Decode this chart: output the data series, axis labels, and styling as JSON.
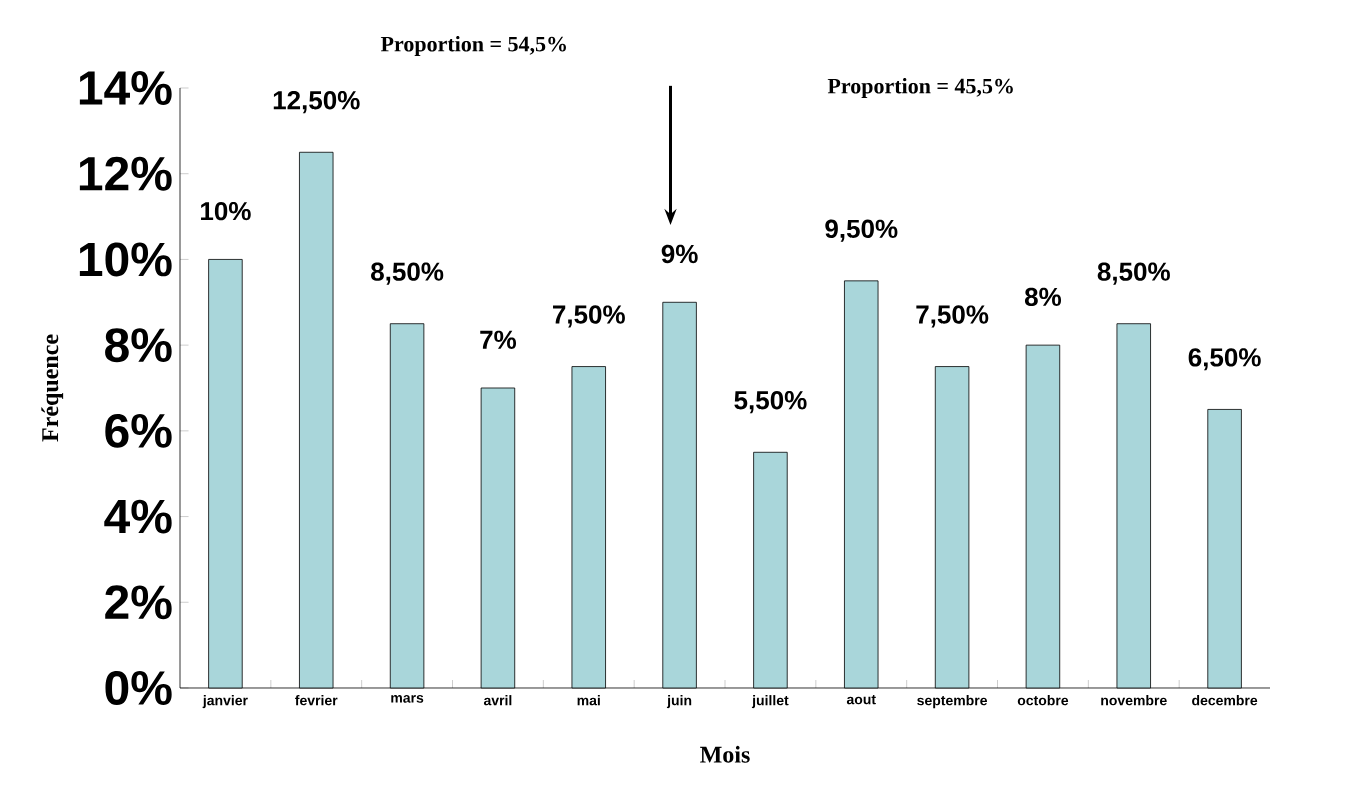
{
  "chart_data": {
    "type": "bar",
    "categories": [
      "janvier",
      "fevrier",
      "mars",
      "avril",
      "mai",
      "juin",
      "juillet",
      "aout",
      "septembre",
      "octobre",
      "novembre",
      "decembre"
    ],
    "values": [
      10,
      12.5,
      8.5,
      7,
      7.5,
      9,
      5.5,
      9.5,
      7.5,
      8,
      8.5,
      6.5
    ],
    "value_labels": [
      "10%",
      "12,50%",
      "8,50%",
      "7%",
      "7,50%",
      "9%",
      "5,50%",
      "9,50%",
      "7,50%",
      "8%",
      "8,50%",
      "6,50%"
    ],
    "color": "#a9d6da",
    "xlabel": "Mois",
    "ylabel": "Fréquence",
    "ylim": [
      0,
      14
    ],
    "yticks": [
      {
        "value": 0,
        "label": "0%"
      },
      {
        "value": 2,
        "label": "2%"
      },
      {
        "value": 4,
        "label": "4%"
      },
      {
        "value": 6,
        "label": "6%"
      },
      {
        "value": 8,
        "label": "8%"
      },
      {
        "value": 10,
        "label": "10%"
      },
      {
        "value": 12,
        "label": "12%"
      },
      {
        "value": 14,
        "label": "14%"
      }
    ],
    "annotations": [
      "Proportion = 54,5%",
      "Proportion = 45,5%"
    ],
    "grid": false
  }
}
